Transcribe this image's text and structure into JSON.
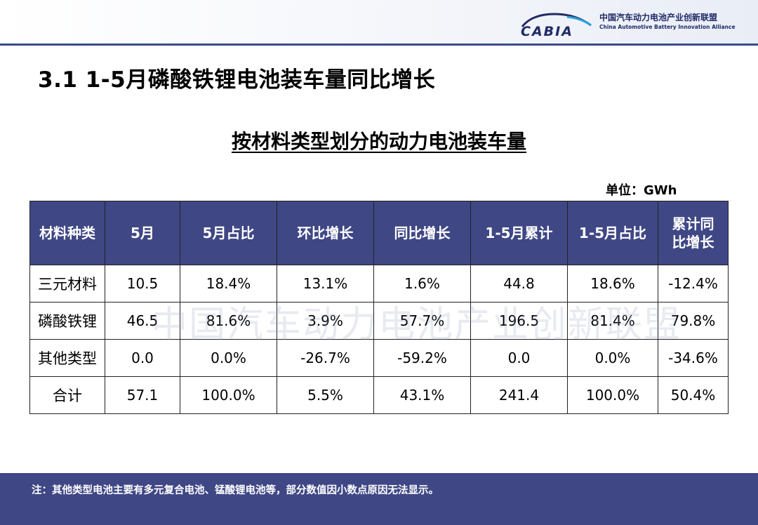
{
  "header": {
    "logo_text": "CABIA",
    "org_name_cn": "中国汽车动力电池产业创新联盟",
    "org_name_en": "China Automotive Battery Innovation Alliance"
  },
  "section_title": "3.1 1-5月磷酸铁锂电池装车量同比增长",
  "table_title": "按材料类型划分的动力电池装车量",
  "unit": "单位：GWh",
  "watermark": "中国汽车动力电池产业创新联盟",
  "table": {
    "headers": [
      "材料种类",
      "5月",
      "5月占比",
      "环比增长",
      "同比增长",
      "1-5月累计",
      "1-5月占比",
      "累计同比增长"
    ],
    "rows": [
      [
        "三元材料",
        "10.5",
        "18.4%",
        "13.1%",
        "1.6%",
        "44.8",
        "18.6%",
        "-12.4%"
      ],
      [
        "磷酸铁锂",
        "46.5",
        "81.6%",
        "3.9%",
        "57.7%",
        "196.5",
        "81.4%",
        "79.8%"
      ],
      [
        "其他类型",
        "0.0",
        "0.0%",
        "-26.7%",
        "-59.2%",
        "0.0",
        "0.0%",
        "-34.6%"
      ],
      [
        "合计",
        "57.1",
        "100.0%",
        "5.5%",
        "43.1%",
        "241.4",
        "100.0%",
        "50.4%"
      ]
    ]
  },
  "footer_note": "注：其他类型电池主要有多元复合电池、锰酸锂电池等，部分数值因小数点原因无法显示。",
  "colors": {
    "header_fill": "#3f4785",
    "footer_fill": "#3f4785",
    "logo_blue": "#1f2a66"
  }
}
